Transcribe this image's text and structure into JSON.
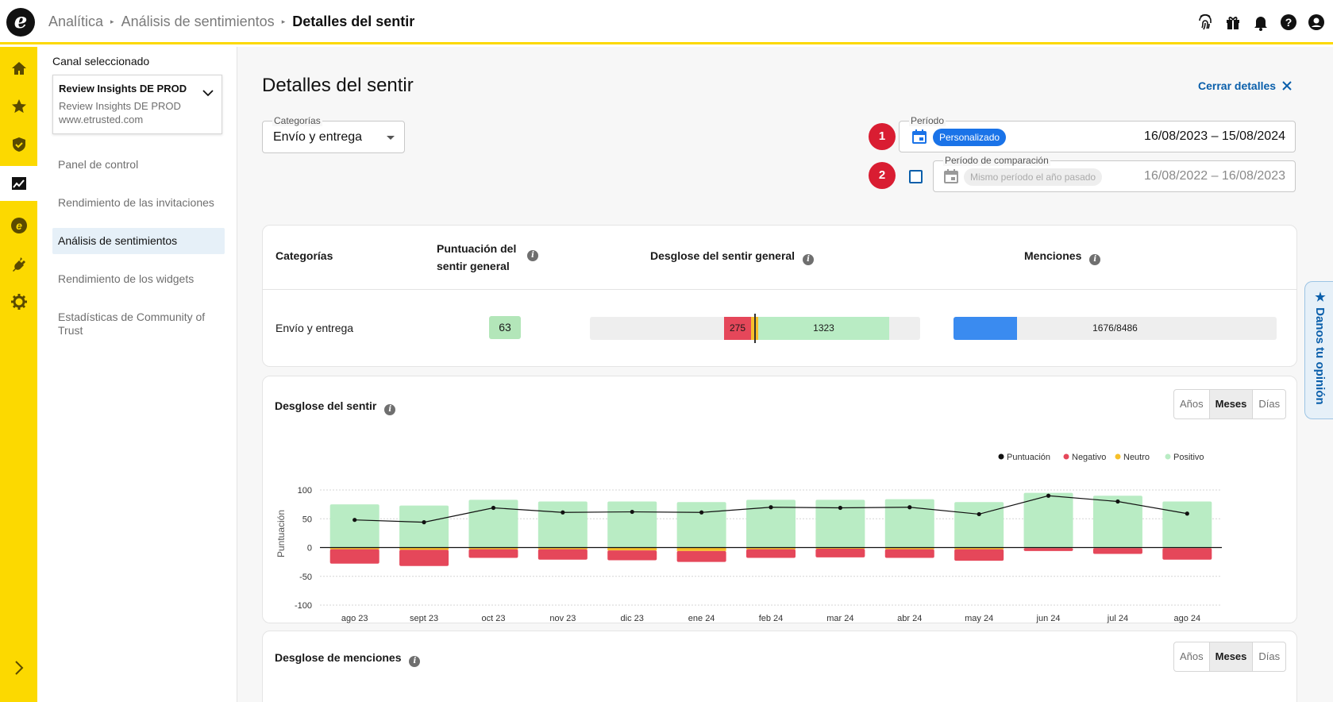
{
  "breadcrumbs": [
    "Analítica",
    "Análisis de sentimientos",
    "Detalles del sentir"
  ],
  "top_icons": [
    "fingerprint-icon",
    "gift-icon",
    "bell-icon",
    "help-icon",
    "user-icon"
  ],
  "rail": [
    "home-icon",
    "star-icon",
    "shield-icon",
    "analytics-icon",
    "etrusted-icon",
    "plug-icon",
    "gear-icon"
  ],
  "sidebar": {
    "title": "Canal seleccionado",
    "channel_name": "Review Insights DE PROD",
    "channel_sub": "Review Insights DE PROD",
    "channel_url": "www.etrusted.com",
    "items": [
      {
        "label": "Panel de control"
      },
      {
        "label": "Rendimiento de las invitaciones"
      },
      {
        "label": "Análisis de sentimientos"
      },
      {
        "label": "Rendimiento de los widgets"
      },
      {
        "label": "Estadísticas de Community of Trust"
      }
    ]
  },
  "page": {
    "title": "Detalles del sentir",
    "close_label": "Cerrar detalles"
  },
  "filters": {
    "category_label": "Categorías",
    "category_value": "Envío y entrega",
    "step1": "1",
    "step2": "2",
    "period_label": "Período",
    "period_chip": "Personalizado",
    "period_range": "16/08/2023 – 15/08/2024",
    "compare_label": "Período de comparación",
    "compare_chip": "Mismo período el año pasado",
    "compare_range": "16/08/2022 – 16/08/2023"
  },
  "summary": {
    "headers": {
      "category": "Categorías",
      "score_line1": "Puntuación del",
      "score_line2": "sentir general",
      "breakdown": "Desglose del sentir general",
      "mentions": "Menciones"
    },
    "row": {
      "category": "Envío y entrega",
      "score": "63",
      "negative": "275",
      "positive": "1323",
      "mentions": "1676/8486"
    }
  },
  "sentiment_card": {
    "title": "Desglose del sentir",
    "toggle": [
      "Años",
      "Meses",
      "Días"
    ],
    "selected": "Meses"
  },
  "mentions_card": {
    "title": "Desglose de menciones",
    "toggle": [
      "Años",
      "Meses",
      "Días"
    ],
    "selected": "Meses"
  },
  "feedback_tab": "★ Danos tu opinión",
  "colors": {
    "accent_yellow": "#fcd900",
    "link_blue": "#0a5fab",
    "positive": "#b9ecc4",
    "negative": "#e5475a",
    "neutral": "#f6c02a",
    "score": "#111111",
    "mentions_bar": "#3a8bf0"
  },
  "chart_data": {
    "type": "bar",
    "ylabel": "Puntuación",
    "ylim": [
      -100,
      100
    ],
    "yticks": [
      100,
      50,
      0,
      -50,
      -100
    ],
    "legend": [
      "Puntuación",
      "Negativo",
      "Neutro",
      "Positivo"
    ],
    "legend_position": "top-right",
    "categories": [
      "ago 23",
      "sept 23",
      "oct 23",
      "nov 23",
      "dic 23",
      "ene 24",
      "feb 24",
      "mar 24",
      "abr 24",
      "may 24",
      "jun 24",
      "jul 24",
      "ago 24"
    ],
    "series": [
      {
        "name": "Positivo",
        "values": [
          75,
          73,
          83,
          80,
          80,
          79,
          83,
          83,
          84,
          79,
          95,
          90,
          80
        ]
      },
      {
        "name": "Neutro",
        "values": [
          3,
          4,
          3,
          3,
          5,
          6,
          3,
          2,
          3,
          3,
          1,
          1,
          1
        ]
      },
      {
        "name": "Negativo",
        "values": [
          -25,
          -28,
          -15,
          -18,
          -17,
          -19,
          -15,
          -15,
          -15,
          -20,
          -5,
          -10,
          -20
        ]
      },
      {
        "name": "Puntuación",
        "values": [
          48,
          44,
          69,
          61,
          62,
          61,
          70,
          69,
          70,
          58,
          90,
          80,
          59
        ]
      }
    ]
  }
}
